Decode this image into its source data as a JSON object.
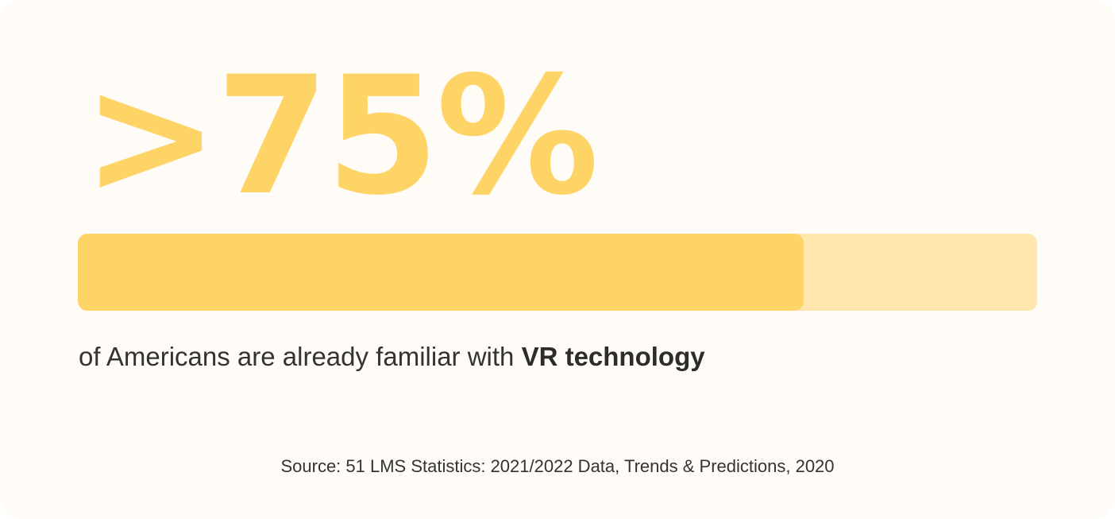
{
  "stat": {
    "value_text": ">75%"
  },
  "progress": {
    "fraction": 0.757,
    "fill_color": "#ffd466",
    "track_color": "#fee6ad"
  },
  "caption": {
    "lead_text": "of Americans are already familiar with",
    "emphasis_text": "VR technology"
  },
  "source": {
    "text": "Source: 51 LMS Statistics: 2021/2022 Data, Trends & Predictions, 2020"
  },
  "colors": {
    "accent": "#ffd466",
    "background": "#fffcf8",
    "text": "#333333"
  }
}
